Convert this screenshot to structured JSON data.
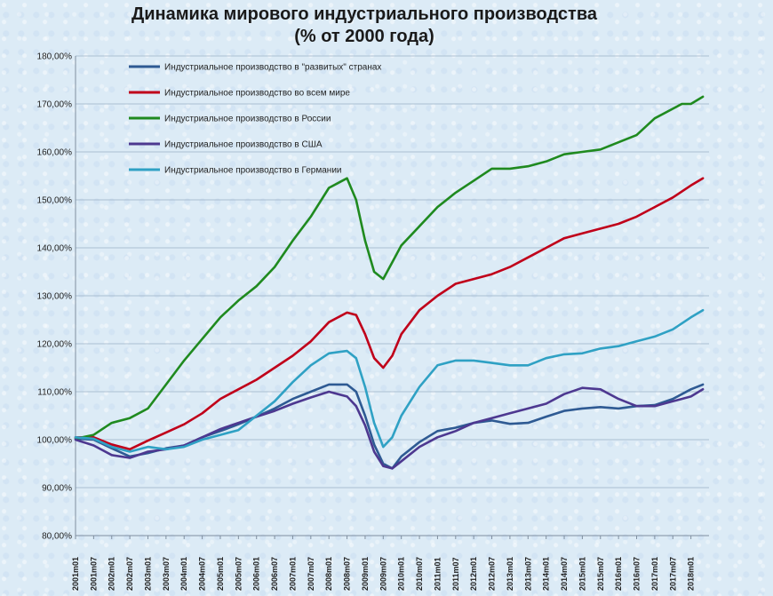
{
  "chart_data": {
    "type": "line",
    "title": "Динамика мирового индустриального производства",
    "subtitle": "(% от 2000 года)",
    "xlabel": "",
    "ylabel": "",
    "ylim": [
      80,
      180
    ],
    "y_ticks": [
      "80,00%",
      "90,00%",
      "100,00%",
      "110,00%",
      "120,00%",
      "130,00%",
      "140,00%",
      "150,00%",
      "160,00%",
      "170,00%",
      "180,00%"
    ],
    "x_ticks": [
      "2001m01",
      "2001m07",
      "2002m01",
      "2002m07",
      "2003m01",
      "2003m07",
      "2004m01",
      "2004m07",
      "2005m01",
      "2005m07",
      "2006m01",
      "2006m07",
      "2007m01",
      "2007m07",
      "2008m01",
      "2008m07",
      "2009m01",
      "2009m07",
      "2010m01",
      "2010m07",
      "2011m01",
      "2011m07",
      "2012m01",
      "2012m07",
      "2013m01",
      "2013m07",
      "2014m01",
      "2014m07",
      "2015m01",
      "2015m07",
      "2016m01",
      "2016m07",
      "2017m01",
      "2017m07",
      "2018m01"
    ],
    "grid": true,
    "legend_position": "top-left",
    "series": [
      {
        "name": "Индустриальное производство в \"развитых\" странах",
        "color": "#2e5a93",
        "x": [
          2001.0,
          2001.5,
          2002.0,
          2002.5,
          2003.0,
          2003.5,
          2004.0,
          2004.5,
          2005.0,
          2005.5,
          2006.0,
          2006.5,
          2007.0,
          2007.5,
          2008.0,
          2008.5,
          2008.75,
          2009.0,
          2009.25,
          2009.5,
          2009.75,
          2010.0,
          2010.5,
          2011.0,
          2011.5,
          2012.0,
          2012.5,
          2013.0,
          2013.5,
          2014.0,
          2014.5,
          2015.0,
          2015.5,
          2016.0,
          2016.5,
          2017.0,
          2017.5,
          2018.0,
          2018.33
        ],
        "values": [
          100.2,
          100.0,
          98.2,
          96.5,
          97.2,
          98.2,
          98.8,
          100.5,
          101.8,
          103.2,
          104.8,
          106.5,
          108.5,
          110.0,
          111.5,
          111.5,
          110.0,
          105.0,
          99.0,
          95.0,
          94.0,
          96.5,
          99.5,
          101.8,
          102.5,
          103.5,
          104.0,
          103.3,
          103.5,
          104.8,
          106.0,
          106.5,
          106.8,
          106.5,
          107.0,
          107.2,
          108.5,
          110.5,
          111.5
        ]
      },
      {
        "name": "Индустриальное производство во всем мире",
        "color": "#c0001a",
        "x": [
          2001.0,
          2001.5,
          2002.0,
          2002.5,
          2003.0,
          2003.5,
          2004.0,
          2004.5,
          2005.0,
          2005.5,
          2006.0,
          2006.5,
          2007.0,
          2007.5,
          2008.0,
          2008.5,
          2008.75,
          2009.0,
          2009.25,
          2009.5,
          2009.75,
          2010.0,
          2010.5,
          2011.0,
          2011.5,
          2012.0,
          2012.5,
          2013.0,
          2013.5,
          2014.0,
          2014.5,
          2015.0,
          2015.5,
          2016.0,
          2016.5,
          2017.0,
          2017.5,
          2018.0,
          2018.33
        ],
        "values": [
          100.5,
          100.5,
          99.0,
          98.0,
          99.8,
          101.5,
          103.2,
          105.5,
          108.5,
          110.5,
          112.5,
          115.0,
          117.5,
          120.5,
          124.5,
          126.5,
          126.0,
          122.0,
          117.0,
          115.0,
          117.5,
          122.0,
          127.0,
          130.0,
          132.5,
          133.5,
          134.5,
          136.0,
          138.0,
          140.0,
          142.0,
          143.0,
          144.0,
          145.0,
          146.5,
          148.5,
          150.5,
          153.0,
          154.5
        ]
      },
      {
        "name": "Индустриальное производство в России",
        "color": "#1f8a1f",
        "x": [
          2001.0,
          2001.5,
          2002.0,
          2002.5,
          2003.0,
          2003.5,
          2004.0,
          2004.5,
          2005.0,
          2005.5,
          2006.0,
          2006.5,
          2007.0,
          2007.5,
          2008.0,
          2008.5,
          2008.75,
          2009.0,
          2009.25,
          2009.5,
          2009.75,
          2010.0,
          2010.5,
          2011.0,
          2011.5,
          2012.0,
          2012.5,
          2013.0,
          2013.5,
          2014.0,
          2014.5,
          2015.0,
          2015.5,
          2016.0,
          2016.5,
          2017.0,
          2017.5,
          2017.75,
          2018.0,
          2018.33
        ],
        "values": [
          100.2,
          101.0,
          103.5,
          104.5,
          106.5,
          111.5,
          116.5,
          121.0,
          125.5,
          129.0,
          132.0,
          136.0,
          141.5,
          146.5,
          152.5,
          154.5,
          150.0,
          141.5,
          135.0,
          133.5,
          137.0,
          140.5,
          144.5,
          148.5,
          151.5,
          154.0,
          156.5,
          156.5,
          157.0,
          158.0,
          159.5,
          160.0,
          160.5,
          162.0,
          163.5,
          167.0,
          169.0,
          170.0,
          170.0,
          171.5
        ]
      },
      {
        "name": "Индустриальное производство в США",
        "color": "#4d3890",
        "x": [
          2001.0,
          2001.5,
          2002.0,
          2002.5,
          2003.0,
          2003.5,
          2004.0,
          2004.5,
          2005.0,
          2005.5,
          2006.0,
          2006.5,
          2007.0,
          2007.5,
          2008.0,
          2008.5,
          2008.75,
          2009.0,
          2009.25,
          2009.5,
          2009.75,
          2010.0,
          2010.5,
          2011.0,
          2011.5,
          2012.0,
          2012.5,
          2013.0,
          2013.5,
          2014.0,
          2014.5,
          2015.0,
          2015.5,
          2016.0,
          2016.5,
          2017.0,
          2017.5,
          2018.0,
          2018.33
        ],
        "values": [
          100.0,
          98.8,
          96.8,
          96.2,
          97.5,
          98.0,
          98.8,
          100.5,
          102.2,
          103.5,
          104.8,
          106.0,
          107.5,
          108.8,
          110.0,
          109.0,
          107.0,
          103.0,
          97.5,
          94.5,
          94.0,
          95.5,
          98.5,
          100.5,
          101.8,
          103.5,
          104.5,
          105.5,
          106.5,
          107.5,
          109.5,
          110.8,
          110.5,
          108.5,
          107.0,
          107.0,
          108.0,
          109.0,
          110.5
        ]
      },
      {
        "name": "Индустриальное производство в Германии",
        "color": "#2fa1c4",
        "x": [
          2001.0,
          2001.5,
          2002.0,
          2002.5,
          2003.0,
          2003.5,
          2004.0,
          2004.5,
          2005.0,
          2005.5,
          2006.0,
          2006.5,
          2007.0,
          2007.5,
          2008.0,
          2008.5,
          2008.75,
          2009.0,
          2009.25,
          2009.5,
          2009.75,
          2010.0,
          2010.5,
          2011.0,
          2011.5,
          2012.0,
          2012.5,
          2013.0,
          2013.5,
          2014.0,
          2014.5,
          2015.0,
          2015.5,
          2016.0,
          2016.5,
          2017.0,
          2017.5,
          2018.0,
          2018.33
        ],
        "values": [
          100.5,
          100.2,
          98.5,
          97.5,
          98.5,
          98.0,
          98.5,
          100.0,
          101.0,
          102.0,
          105.0,
          108.0,
          112.0,
          115.5,
          118.0,
          118.5,
          117.0,
          111.0,
          103.5,
          98.5,
          100.5,
          105.0,
          111.0,
          115.5,
          116.5,
          116.5,
          116.0,
          115.5,
          115.5,
          117.0,
          117.8,
          118.0,
          119.0,
          119.5,
          120.5,
          121.5,
          123.0,
          125.5,
          127.0
        ]
      }
    ]
  }
}
